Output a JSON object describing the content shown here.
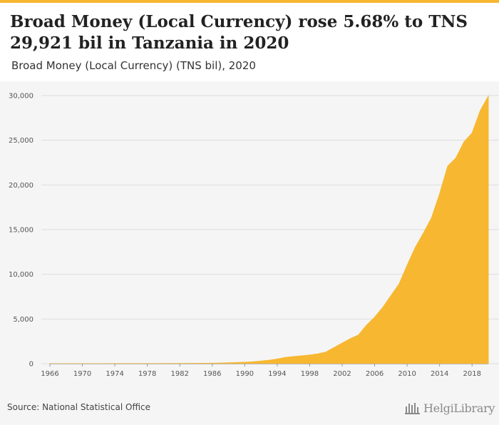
{
  "title": "Broad Money (Local Currency) rose 5.68% to TNS 29,921 bil in Tanzania in 2020",
  "subtitle": "Broad Money (Local Currency) (TNS bil), 2020",
  "source": "Source: National Statistical Office",
  "brand": "HelgiLibrary",
  "colors": {
    "area": "#f7b731",
    "accent": "#f7b731",
    "grid": "#dddddd"
  },
  "chart_data": {
    "type": "area",
    "title": "Broad Money (Local Currency) rose 5.68% to TNS 29,921 bil in Tanzania in 2020",
    "subtitle": "Broad Money (Local Currency) (TNS bil), 2020",
    "xlabel": "",
    "ylabel": "",
    "xlim": [
      1966,
      2020
    ],
    "ylim": [
      0,
      30000
    ],
    "grid": true,
    "x_ticks": [
      "1966",
      "1970",
      "1974",
      "1978",
      "1982",
      "1986",
      "1990",
      "1994",
      "1998",
      "2002",
      "2006",
      "2010",
      "2014",
      "2018"
    ],
    "y_ticks": [
      "0",
      "5,000",
      "10,000",
      "15,000",
      "20,000",
      "25,000",
      "30,000"
    ],
    "x": [
      1966,
      1967,
      1968,
      1969,
      1970,
      1971,
      1972,
      1973,
      1974,
      1975,
      1976,
      1977,
      1978,
      1979,
      1980,
      1981,
      1982,
      1983,
      1984,
      1985,
      1986,
      1987,
      1988,
      1989,
      1990,
      1991,
      1992,
      1993,
      1994,
      1995,
      1996,
      1997,
      1998,
      1999,
      2000,
      2001,
      2002,
      2003,
      2004,
      2005,
      2006,
      2007,
      2008,
      2009,
      2010,
      2011,
      2012,
      2013,
      2014,
      2015,
      2016,
      2017,
      2018,
      2019,
      2020
    ],
    "values": [
      1,
      1,
      2,
      2,
      3,
      3,
      4,
      5,
      6,
      7,
      9,
      10,
      12,
      14,
      17,
      20,
      24,
      28,
      32,
      38,
      50,
      70,
      95,
      125,
      160,
      210,
      290,
      390,
      520,
      700,
      800,
      880,
      970,
      1100,
      1300,
      1800,
      2300,
      2800,
      3200,
      4300,
      5200,
      6300,
      7600,
      8900,
      11000,
      13000,
      14600,
      16300,
      19000,
      22100,
      23000,
      24800,
      25800,
      28300,
      29921
    ]
  }
}
